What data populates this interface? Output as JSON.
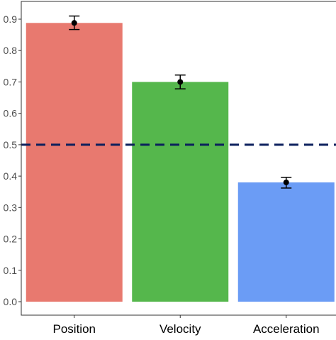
{
  "chart_data": {
    "type": "bar",
    "categories": [
      "Position",
      "Velocity",
      "Acceleration"
    ],
    "values": [
      0.888,
      0.7,
      0.38
    ],
    "error_low": [
      0.867,
      0.678,
      0.362
    ],
    "error_high": [
      0.91,
      0.722,
      0.396
    ],
    "bar_colors": [
      "#E8796F",
      "#55B74C",
      "#6B9CF5"
    ],
    "reference_line": {
      "value": 0.5,
      "color": "#0B1F5C",
      "style": "dashed"
    },
    "ylim": [
      0.0,
      0.9
    ],
    "yticks": [
      "0.0",
      "0.1",
      "0.2",
      "0.3",
      "0.4",
      "0.5",
      "0.6",
      "0.7",
      "0.8",
      "0.9"
    ],
    "title": "",
    "xlabel": "",
    "ylabel": "",
    "grid": false,
    "legend": "none"
  }
}
